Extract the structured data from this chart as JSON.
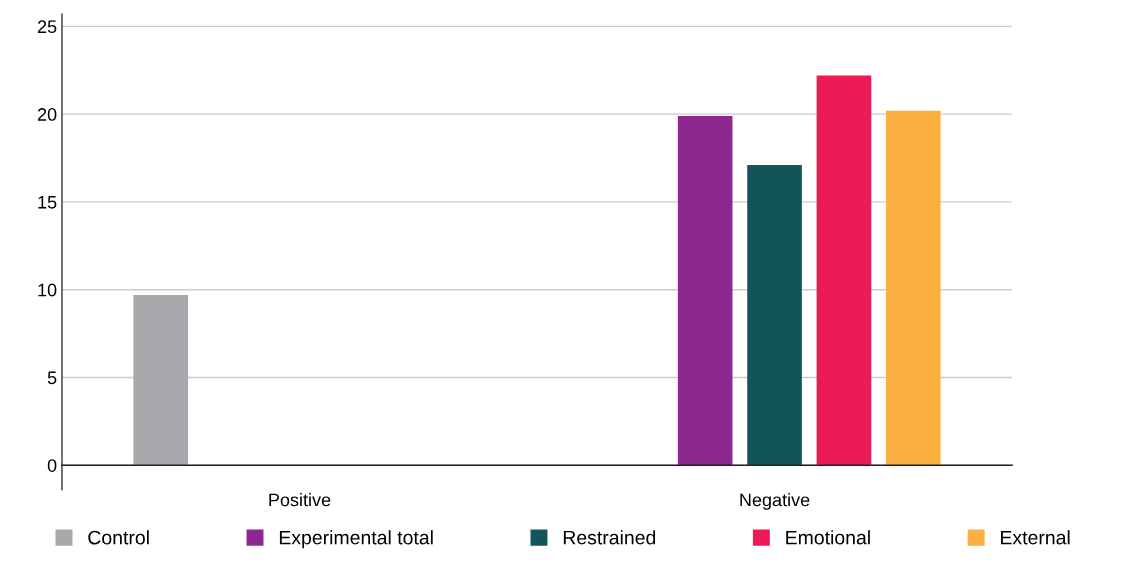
{
  "chart_data": {
    "type": "bar",
    "categories": [
      "Positive",
      "Negative"
    ],
    "series": [
      {
        "name": "Control",
        "color": "#a7a8ab",
        "values": [
          9.7,
          null
        ]
      },
      {
        "name": "Experimental total",
        "color": "#8c278f",
        "values": [
          null,
          19.9
        ]
      },
      {
        "name": "Restrained",
        "color": "#11545a",
        "values": [
          null,
          17.1
        ]
      },
      {
        "name": "Emotional",
        "color": "#ec1a55",
        "values": [
          null,
          22.2
        ]
      },
      {
        "name": "External",
        "color": "#fbaf3f",
        "values": [
          null,
          20.2
        ]
      }
    ],
    "ylim": [
      -1.4,
      25.7
    ],
    "yticks": [
      0,
      5,
      10,
      15,
      20,
      25
    ],
    "grid": "y",
    "legend": "bottom"
  }
}
